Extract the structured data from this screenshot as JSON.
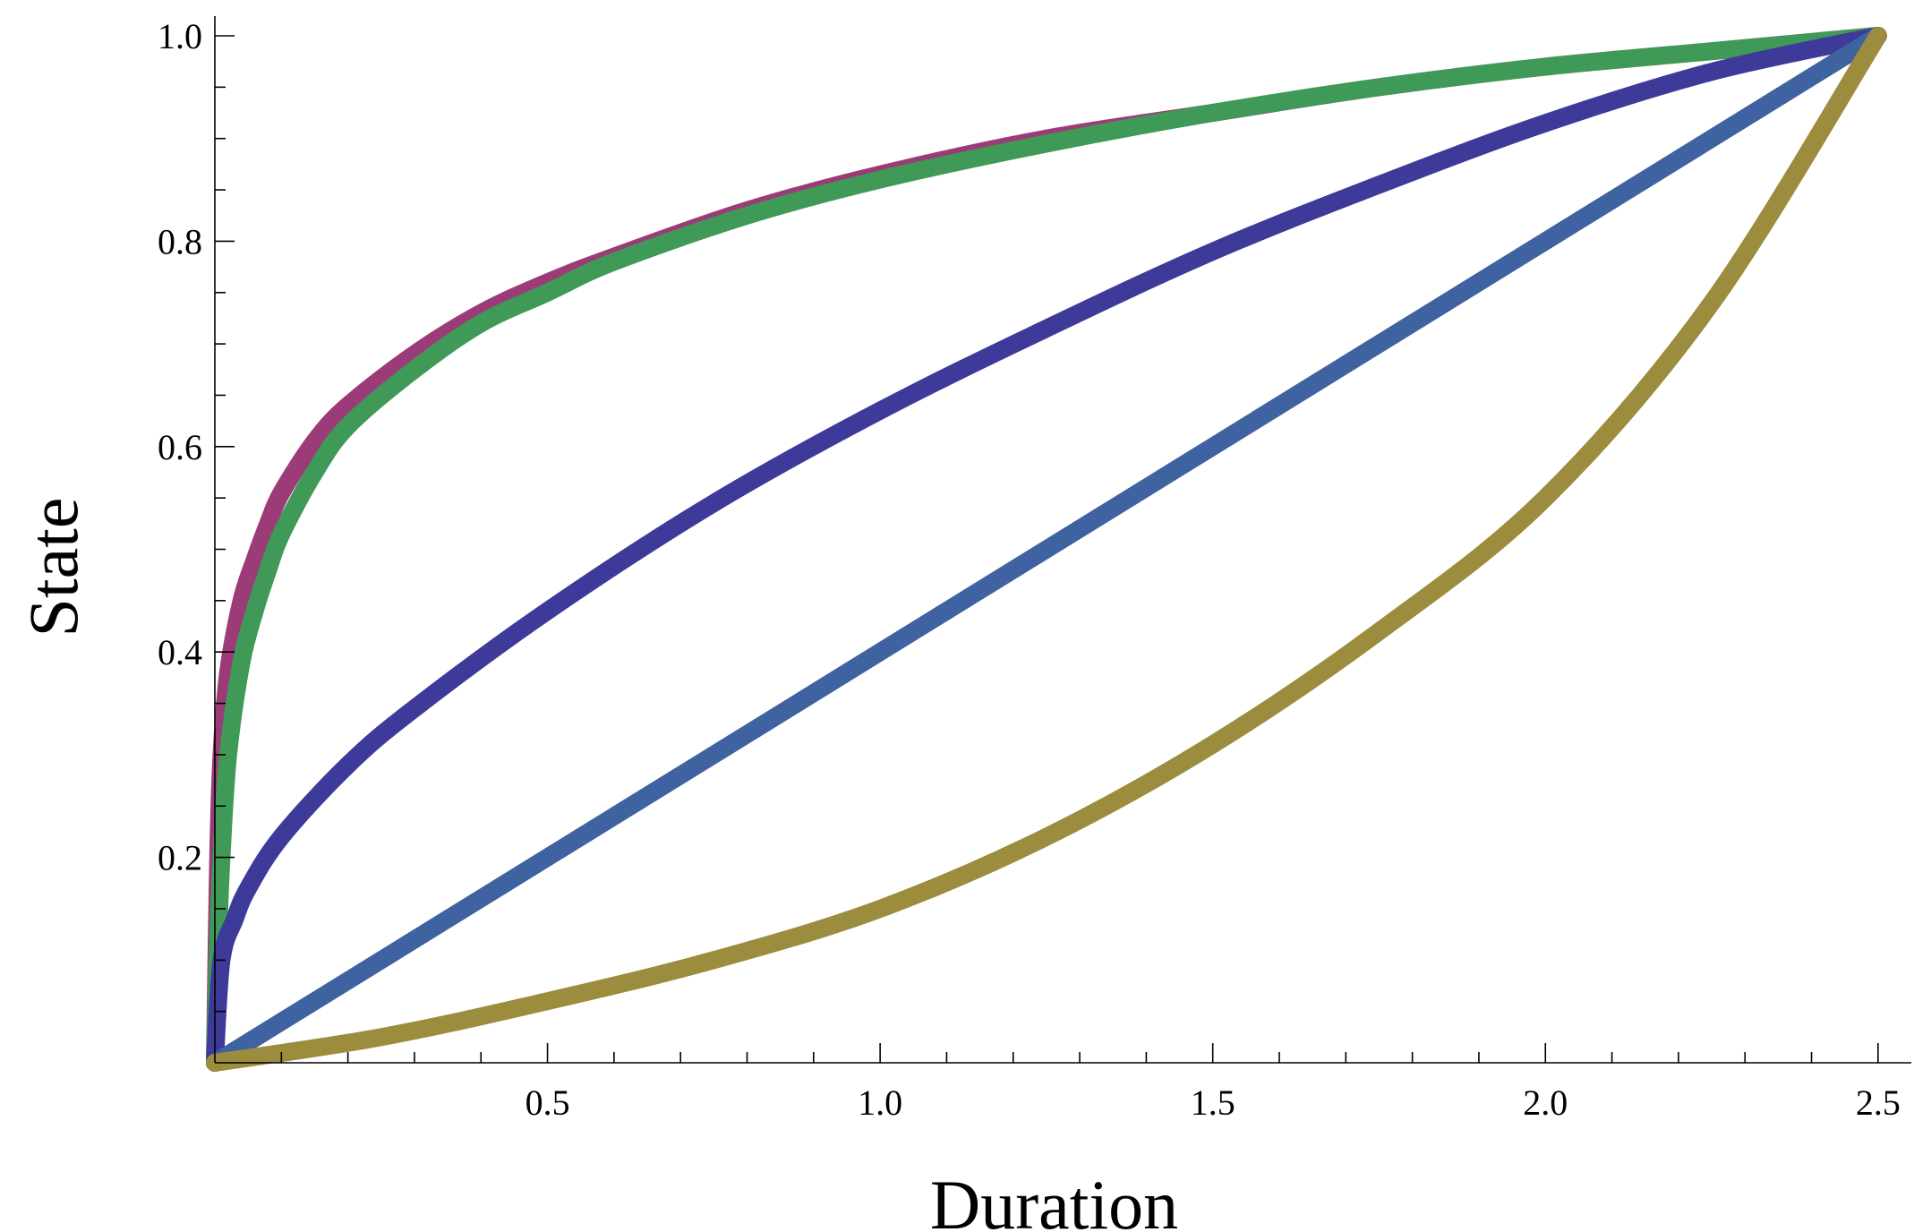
{
  "chart_data": {
    "type": "line",
    "title": "",
    "xlabel": "Duration",
    "ylabel": "State",
    "xlim": [
      0,
      2.55
    ],
    "ylim": [
      0,
      1.0
    ],
    "x_ticks": [
      "0.5",
      "1.0",
      "1.5",
      "2.0",
      "2.5"
    ],
    "y_ticks": [
      "0.2",
      "0.4",
      "0.6",
      "0.8",
      "1.0"
    ],
    "grid": false,
    "legend": "none",
    "series": [
      {
        "color": "#9b3c78",
        "x": [
          0,
          0.005,
          0.01,
          0.02,
          0.04,
          0.06,
          0.08,
          0.1,
          0.15,
          0.2,
          0.3,
          0.4,
          0.5,
          0.6,
          0.8,
          1.0,
          1.25,
          1.5,
          1.75,
          2.0,
          2.25,
          2.5
        ],
        "y": [
          0,
          0.2,
          0.3,
          0.38,
          0.45,
          0.49,
          0.525,
          0.555,
          0.605,
          0.64,
          0.69,
          0.73,
          0.76,
          0.785,
          0.83,
          0.865,
          0.9,
          0.925,
          0.95,
          0.97,
          0.985,
          1.0
        ]
      },
      {
        "color": "#3f9a58",
        "x": [
          0,
          0.005,
          0.01,
          0.02,
          0.04,
          0.06,
          0.08,
          0.1,
          0.15,
          0.2,
          0.3,
          0.4,
          0.5,
          0.6,
          0.8,
          1.0,
          1.25,
          1.5,
          1.75,
          2.0,
          2.25,
          2.5
        ],
        "y": [
          0,
          0.12,
          0.2,
          0.3,
          0.39,
          0.44,
          0.48,
          0.515,
          0.575,
          0.62,
          0.675,
          0.72,
          0.75,
          0.78,
          0.825,
          0.86,
          0.895,
          0.925,
          0.95,
          0.97,
          0.985,
          1.0
        ]
      },
      {
        "color": "#3d3a9a",
        "x": [
          0,
          0.01,
          0.03,
          0.05,
          0.1,
          0.2,
          0.3,
          0.5,
          0.75,
          1.0,
          1.25,
          1.5,
          1.75,
          2.0,
          2.25,
          2.5
        ],
        "y": [
          0,
          0.1,
          0.14,
          0.17,
          0.22,
          0.29,
          0.345,
          0.44,
          0.545,
          0.635,
          0.715,
          0.79,
          0.855,
          0.915,
          0.965,
          1.0
        ]
      },
      {
        "color": "#3f62a0",
        "x": [
          0,
          2.5
        ],
        "y": [
          0,
          1.0
        ]
      },
      {
        "color": "#9c8c3e",
        "x": [
          0,
          0.25,
          0.5,
          0.75,
          1.0,
          1.25,
          1.5,
          1.75,
          2.0,
          2.25,
          2.5
        ],
        "y": [
          0,
          0.025,
          0.06,
          0.1,
          0.15,
          0.22,
          0.31,
          0.42,
          0.55,
          0.74,
          1.0
        ]
      }
    ]
  }
}
